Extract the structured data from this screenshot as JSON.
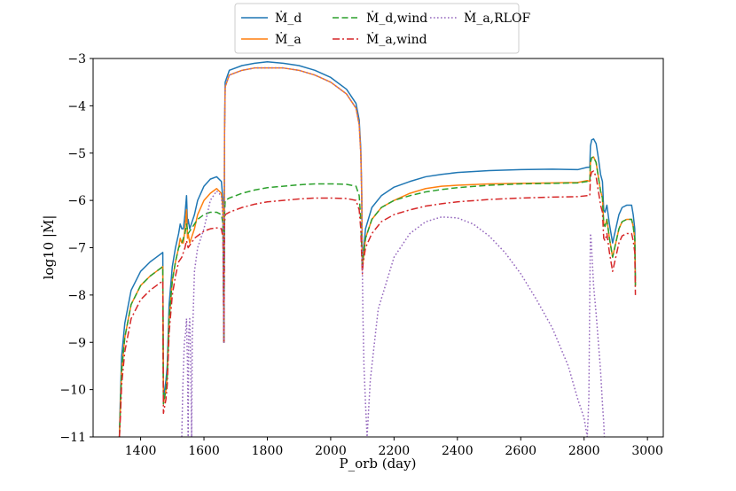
{
  "chart_data": {
    "type": "line",
    "xlabel": "P_orb (day)",
    "ylabel": "log10 |Ṁ|",
    "xlim": [
      1250,
      3050
    ],
    "ylim": [
      -11,
      -3
    ],
    "xticks": [
      1400,
      1600,
      1800,
      2000,
      2200,
      2400,
      2600,
      2800,
      3000
    ],
    "xtick_labels": [
      "1400",
      "1600",
      "1800",
      "2000",
      "2200",
      "2400",
      "2600",
      "2800",
      "3000"
    ],
    "yticks": [
      -11,
      -10,
      -9,
      -8,
      -7,
      -6,
      -5,
      -4,
      -3
    ],
    "ytick_labels": [
      "−11",
      "−10",
      "−9",
      "−8",
      "−7",
      "−6",
      "−5",
      "−4",
      "−3"
    ],
    "legend_position": "top-center, above plot",
    "series": [
      {
        "name": "Ṁ_d",
        "color": "#1f77b4",
        "style": "solid",
        "x": [
          1333,
          1336,
          1340,
          1350,
          1370,
          1400,
          1430,
          1450,
          1470,
          1472,
          1480,
          1484,
          1490,
          1500,
          1510,
          1520,
          1525,
          1530,
          1535,
          1540,
          1545,
          1548,
          1550,
          1555,
          1560,
          1570,
          1580,
          1600,
          1620,
          1640,
          1655,
          1660,
          1663,
          1665,
          1667,
          1680,
          1720,
          1760,
          1800,
          1850,
          1900,
          1950,
          2000,
          2050,
          2080,
          2090,
          2095,
          2098,
          2100,
          2102,
          2110,
          2130,
          2160,
          2200,
          2250,
          2300,
          2350,
          2400,
          2500,
          2600,
          2700,
          2780,
          2810,
          2818,
          2820,
          2824,
          2830,
          2838,
          2845,
          2852,
          2858,
          2862,
          2866,
          2872,
          2880,
          2885,
          2890,
          2900,
          2910,
          2920,
          2935,
          2950,
          2955,
          2960,
          2962
        ],
        "y": [
          -11,
          -10.2,
          -9.3,
          -8.6,
          -7.9,
          -7.5,
          -7.3,
          -7.2,
          -7.1,
          -10.2,
          -9.8,
          -9.5,
          -8.2,
          -7.4,
          -7.0,
          -6.7,
          -6.5,
          -6.6,
          -6.6,
          -6.3,
          -5.9,
          -6.5,
          -6.4,
          -6.6,
          -6.5,
          -6.3,
          -6.0,
          -5.7,
          -5.55,
          -5.5,
          -5.6,
          -6.0,
          -9.0,
          -4.5,
          -3.5,
          -3.25,
          -3.15,
          -3.1,
          -3.07,
          -3.1,
          -3.15,
          -3.25,
          -3.4,
          -3.65,
          -3.95,
          -4.3,
          -4.9,
          -5.8,
          -7.4,
          -7.2,
          -6.6,
          -6.15,
          -5.9,
          -5.72,
          -5.6,
          -5.5,
          -5.45,
          -5.41,
          -5.37,
          -5.35,
          -5.34,
          -5.35,
          -5.3,
          -5.3,
          -4.85,
          -4.72,
          -4.7,
          -4.8,
          -5.1,
          -5.45,
          -5.6,
          -6.2,
          -6.25,
          -6.1,
          -6.5,
          -6.7,
          -6.9,
          -6.6,
          -6.3,
          -6.15,
          -6.1,
          -6.1,
          -6.3,
          -6.6,
          -7.7
        ]
      },
      {
        "name": "Ṁ_a",
        "color": "#ff7f0e",
        "style": "solid",
        "x": [
          1333,
          1336,
          1340,
          1350,
          1370,
          1400,
          1430,
          1450,
          1470,
          1472,
          1480,
          1484,
          1490,
          1500,
          1510,
          1520,
          1525,
          1530,
          1535,
          1540,
          1545,
          1548,
          1550,
          1555,
          1560,
          1570,
          1580,
          1600,
          1620,
          1640,
          1655,
          1660,
          1663,
          1665,
          1667,
          1680,
          1720,
          1760,
          1800,
          1850,
          1900,
          1950,
          2000,
          2050,
          2080,
          2090,
          2095,
          2098,
          2100,
          2102,
          2110,
          2130,
          2160,
          2200,
          2250,
          2300,
          2350,
          2400,
          2500,
          2600,
          2700,
          2780,
          2810,
          2818,
          2820,
          2824,
          2830,
          2838,
          2845,
          2852,
          2858,
          2862,
          2866,
          2872,
          2880,
          2885,
          2890,
          2900,
          2910,
          2920,
          2935,
          2950,
          2955,
          2960,
          2962
        ],
        "y": [
          -11,
          -10.4,
          -9.6,
          -8.9,
          -8.2,
          -7.8,
          -7.6,
          -7.5,
          -7.4,
          -10.3,
          -10.0,
          -9.7,
          -8.5,
          -7.7,
          -7.3,
          -7.0,
          -6.8,
          -6.9,
          -6.9,
          -6.6,
          -6.2,
          -6.8,
          -6.7,
          -6.9,
          -6.8,
          -6.6,
          -6.3,
          -6.0,
          -5.85,
          -5.75,
          -5.85,
          -6.2,
          -9.0,
          -4.6,
          -3.6,
          -3.35,
          -3.25,
          -3.2,
          -3.2,
          -3.2,
          -3.25,
          -3.35,
          -3.5,
          -3.75,
          -4.05,
          -4.4,
          -5.0,
          -5.9,
          -7.45,
          -7.3,
          -6.8,
          -6.4,
          -6.15,
          -6.0,
          -5.85,
          -5.75,
          -5.7,
          -5.68,
          -5.65,
          -5.64,
          -5.63,
          -5.62,
          -5.58,
          -5.6,
          -5.2,
          -5.1,
          -5.08,
          -5.2,
          -5.5,
          -5.8,
          -5.95,
          -6.5,
          -6.55,
          -6.4,
          -6.8,
          -7.0,
          -7.2,
          -6.9,
          -6.6,
          -6.45,
          -6.4,
          -6.4,
          -6.55,
          -6.8,
          -7.8
        ]
      },
      {
        "name": "Ṁ_d,wind",
        "color": "#2ca02c",
        "style": "dashed",
        "x": [
          1333,
          1336,
          1340,
          1350,
          1370,
          1400,
          1430,
          1450,
          1470,
          1472,
          1480,
          1484,
          1490,
          1500,
          1510,
          1520,
          1530,
          1540,
          1545,
          1550,
          1560,
          1570,
          1580,
          1600,
          1620,
          1640,
          1655,
          1660,
          1663,
          1665,
          1667,
          1680,
          1720,
          1760,
          1800,
          1850,
          1900,
          1950,
          2000,
          2050,
          2080,
          2090,
          2095,
          2098,
          2100,
          2102,
          2110,
          2130,
          2160,
          2200,
          2250,
          2300,
          2350,
          2400,
          2500,
          2600,
          2700,
          2780,
          2810,
          2818,
          2820,
          2824,
          2830,
          2838,
          2845,
          2852,
          2858,
          2862,
          2866,
          2872,
          2880,
          2885,
          2890,
          2900,
          2910,
          2920,
          2935,
          2950,
          2955,
          2960,
          2962
        ],
        "y": [
          -11,
          -10.4,
          -9.6,
          -8.9,
          -8.2,
          -7.8,
          -7.6,
          -7.5,
          -7.4,
          -10.3,
          -10.0,
          -9.7,
          -8.5,
          -7.7,
          -7.3,
          -7.0,
          -6.9,
          -6.7,
          -6.5,
          -6.7,
          -6.6,
          -6.5,
          -6.4,
          -6.3,
          -6.25,
          -6.25,
          -6.3,
          -6.5,
          -9.0,
          -6.3,
          -6.0,
          -5.95,
          -5.85,
          -5.78,
          -5.73,
          -5.7,
          -5.67,
          -5.65,
          -5.65,
          -5.66,
          -5.7,
          -5.9,
          -6.4,
          -7.0,
          -7.45,
          -7.2,
          -6.8,
          -6.4,
          -6.15,
          -6.0,
          -5.9,
          -5.82,
          -5.77,
          -5.73,
          -5.68,
          -5.65,
          -5.64,
          -5.63,
          -5.6,
          -5.6,
          -5.2,
          -5.1,
          -5.08,
          -5.2,
          -5.5,
          -5.8,
          -5.95,
          -6.5,
          -6.55,
          -6.4,
          -6.8,
          -7.0,
          -7.2,
          -6.9,
          -6.6,
          -6.45,
          -6.4,
          -6.4,
          -6.55,
          -6.8,
          -7.8
        ]
      },
      {
        "name": "Ṁ_a,wind",
        "color": "#d62728",
        "style": "dashdot",
        "x": [
          1333,
          1336,
          1340,
          1350,
          1370,
          1400,
          1430,
          1450,
          1470,
          1472,
          1480,
          1484,
          1490,
          1500,
          1510,
          1520,
          1530,
          1540,
          1545,
          1550,
          1560,
          1570,
          1580,
          1600,
          1620,
          1640,
          1655,
          1660,
          1663,
          1665,
          1667,
          1680,
          1720,
          1760,
          1800,
          1850,
          1900,
          1950,
          2000,
          2050,
          2080,
          2090,
          2095,
          2098,
          2100,
          2102,
          2110,
          2130,
          2160,
          2200,
          2250,
          2300,
          2350,
          2400,
          2500,
          2600,
          2700,
          2780,
          2810,
          2818,
          2820,
          2824,
          2830,
          2838,
          2845,
          2852,
          2858,
          2862,
          2866,
          2872,
          2880,
          2885,
          2890,
          2900,
          2910,
          2920,
          2935,
          2950,
          2955,
          2960,
          2962
        ],
        "y": [
          -11,
          -10.6,
          -9.9,
          -9.2,
          -8.5,
          -8.1,
          -7.9,
          -7.8,
          -7.7,
          -10.5,
          -10.2,
          -9.9,
          -8.8,
          -8.0,
          -7.6,
          -7.3,
          -7.2,
          -7.0,
          -6.85,
          -7.0,
          -6.9,
          -6.8,
          -6.75,
          -6.65,
          -6.6,
          -6.58,
          -6.6,
          -6.8,
          -9.0,
          -6.5,
          -6.3,
          -6.25,
          -6.15,
          -6.08,
          -6.03,
          -6.0,
          -5.97,
          -5.95,
          -5.95,
          -5.96,
          -6.0,
          -6.2,
          -6.6,
          -7.2,
          -7.55,
          -7.35,
          -7.0,
          -6.7,
          -6.45,
          -6.3,
          -6.2,
          -6.12,
          -6.07,
          -6.03,
          -5.98,
          -5.95,
          -5.93,
          -5.92,
          -5.9,
          -5.9,
          -5.5,
          -5.4,
          -5.38,
          -5.5,
          -5.8,
          -6.1,
          -6.25,
          -6.8,
          -6.85,
          -6.7,
          -7.1,
          -7.3,
          -7.5,
          -7.2,
          -6.9,
          -6.75,
          -6.7,
          -6.7,
          -6.85,
          -7.1,
          -8.0
        ]
      },
      {
        "name": "Ṁ_a,RLOF",
        "color": "#9467bd",
        "style": "dotted",
        "x": [
          1530,
          1533,
          1538,
          1542,
          1545,
          1548,
          1550,
          1552,
          1555,
          1558,
          1561,
          1563,
          1566,
          1570,
          1580,
          1600,
          1620,
          1640,
          1655,
          1660,
          1663,
          1665,
          1667,
          1680,
          1720,
          1760,
          1800,
          1850,
          1900,
          1950,
          2000,
          2050,
          2080,
          2090,
          2095,
          2098,
          2100,
          2102,
          2105,
          2110,
          2115,
          2125,
          2150,
          2200,
          2250,
          2300,
          2350,
          2400,
          2450,
          2500,
          2550,
          2600,
          2650,
          2700,
          2750,
          2780,
          2800,
          2810,
          2815,
          2818,
          2820,
          2822,
          2826,
          2830,
          2838,
          2845,
          2852,
          2858,
          2862,
          2864
        ],
        "y": [
          -11,
          -10,
          -9,
          -8.8,
          -8.5,
          -9.5,
          -11,
          -8.8,
          -8.5,
          -9.3,
          -11,
          -8.9,
          -8.4,
          -7.5,
          -7.0,
          -6.6,
          -6.0,
          -5.8,
          -5.9,
          -6.4,
          -9.0,
          -4.6,
          -3.6,
          -3.35,
          -3.25,
          -3.2,
          -3.2,
          -3.2,
          -3.25,
          -3.35,
          -3.5,
          -3.75,
          -4.05,
          -4.4,
          -5.0,
          -5.9,
          -7.45,
          -8.5,
          -9.5,
          -10.3,
          -11,
          -9.8,
          -8.3,
          -7.2,
          -6.7,
          -6.45,
          -6.35,
          -6.37,
          -6.5,
          -6.75,
          -7.1,
          -7.55,
          -8.1,
          -8.7,
          -9.5,
          -10.2,
          -10.6,
          -11,
          -10.2,
          -8.0,
          -6.7,
          -6.8,
          -7.3,
          -7.8,
          -8.4,
          -9.0,
          -9.6,
          -10.3,
          -10.7,
          -11
        ]
      }
    ]
  }
}
